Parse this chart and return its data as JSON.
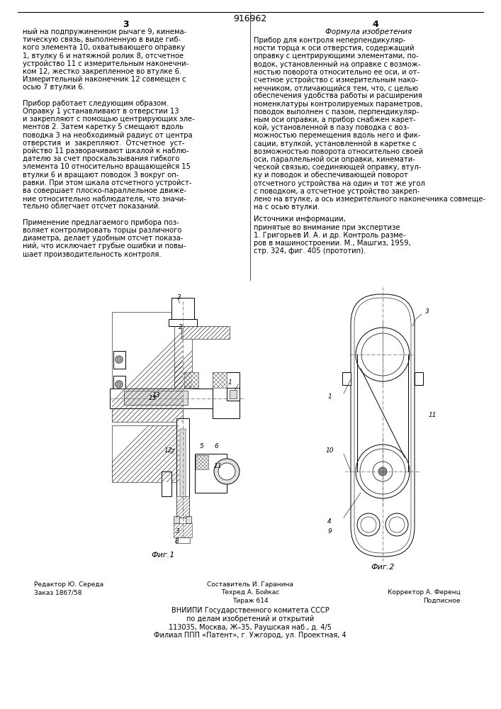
{
  "patent_number": "916962",
  "page_left": "3",
  "page_right": "4",
  "left_column_text": [
    "ный на подпружиненном рычаге 9, кинема-",
    "тическую связь, выполненную в виде гиб-",
    "кого элемента 10, охватывающего оправку",
    "1, втулку 6 и натяжной ролик 8, отсчетное",
    "устройство 11 с измерительным наконечни-",
    "ком 12, жестко закрепленное во втулке 6.",
    "Измерительный наконечник 12 совмещен с",
    "осью 7 втулки 6.",
    "",
    "Прибор работает следующим образом.",
    "Оправку 1 устанавливают в отверстии 13",
    "и закрепляют с помощью центрирующих эле-",
    "ментов 2. Затем каретку 5 смещают вдоль",
    "поводка 3 на необходимый радиус от центра",
    "отверстия  и  закрепляют.  Отсчетное  уст-",
    "ройство 11 разворачивают шкалой к наблю-",
    "дателю за счет проскальзывания гибкого",
    "элемента 10 относительно вращающейся 15",
    "втулки 6 и вращают поводок 3 вокруг оп-",
    "равки. При этом шкала отсчетного устройст-",
    "ва совершает плоско-параллельное движе-",
    "ние относительно наблюдателя, что значи-",
    "тельно облегчает отсчет показаний.",
    "",
    "Применение предлагаемого прибора поз-",
    "воляет контролировать торцы различного",
    "диаметра, делает удобным отсчет показа-",
    "ний, что исключает грубые ошибки и повы-",
    "шает производительность контроля."
  ],
  "right_column_text": [
    "Прибор для контроля неперпендикуляр-",
    "ности торца к оси отверстия, содержащий",
    "оправку с центрирующими элементами, по-",
    "водок, установленный на оправке с возмож-",
    "ностью поворота относительно ее оси, и от-",
    "счетное устройство с измерительным нако-",
    "нечником, отличающийся тем, что, с целью",
    "обеспечения удобства работы и расширения",
    "номенклатуры контролируемых параметров,",
    "поводок выполнен с пазом, перпендикуляр-",
    "ным оси оправки, а прибор снабжен карет-",
    "кой, установленной в пазу поводка с воз-",
    "можностью перемещения вдоль него и фик-",
    "сации, втулкой, установленной в каретке с",
    "возможностью поворота относительно своей",
    "оси, параллельной оси оправки, кинемати-",
    "ческой связью, соединяющей оправку, втул-",
    "ку и поводок и обеспечивающей поворот",
    "отсчетного устройства на один и тот же угол",
    "с поводком, а отсчетное устройство закреп-",
    "лено на втулке, а ось измерительного наконечника совмеще-",
    "на с осью втулки."
  ],
  "formula_title": "Формула изобретения",
  "sources_title": "Источники информации,",
  "sources_subtitle": "принятые во внимание при экспертизе",
  "source_1": "1. Григорьев И. А. и др. Контроль разме-",
  "source_1b": "ров в машиностроении. М., Машгиз, 1959,",
  "source_1c": "стр. 324, фиг. 405 (прототип).",
  "fig1_caption": "Фиг.1",
  "fig2_caption": "Фиг.2",
  "footer_left": "Редактор Ю. Середа",
  "footer_left2": "Заказ 1867/58",
  "footer_center1": "Составитель И. Гаранина",
  "footer_center2": "Техред А. Бойкас",
  "footer_center3": "Тираж 614",
  "footer_right1": "Корректор А. Ференц",
  "footer_right2": "Подписное",
  "footer_org1": "ВНИИПИ Государственного комитета СССР",
  "footer_org2": "по делам изобретений и открытий",
  "footer_org3": "113035, Москва, Ж–35, Раушская наб., д. 4/5",
  "footer_org4": "Филиал ППП «Патент», г. Ужгород, ул. Проектная, 4",
  "bg_color": "#ffffff",
  "text_color": "#000000",
  "font_size_body": 7.2,
  "font_size_caption": 8.0,
  "font_size_header": 9
}
